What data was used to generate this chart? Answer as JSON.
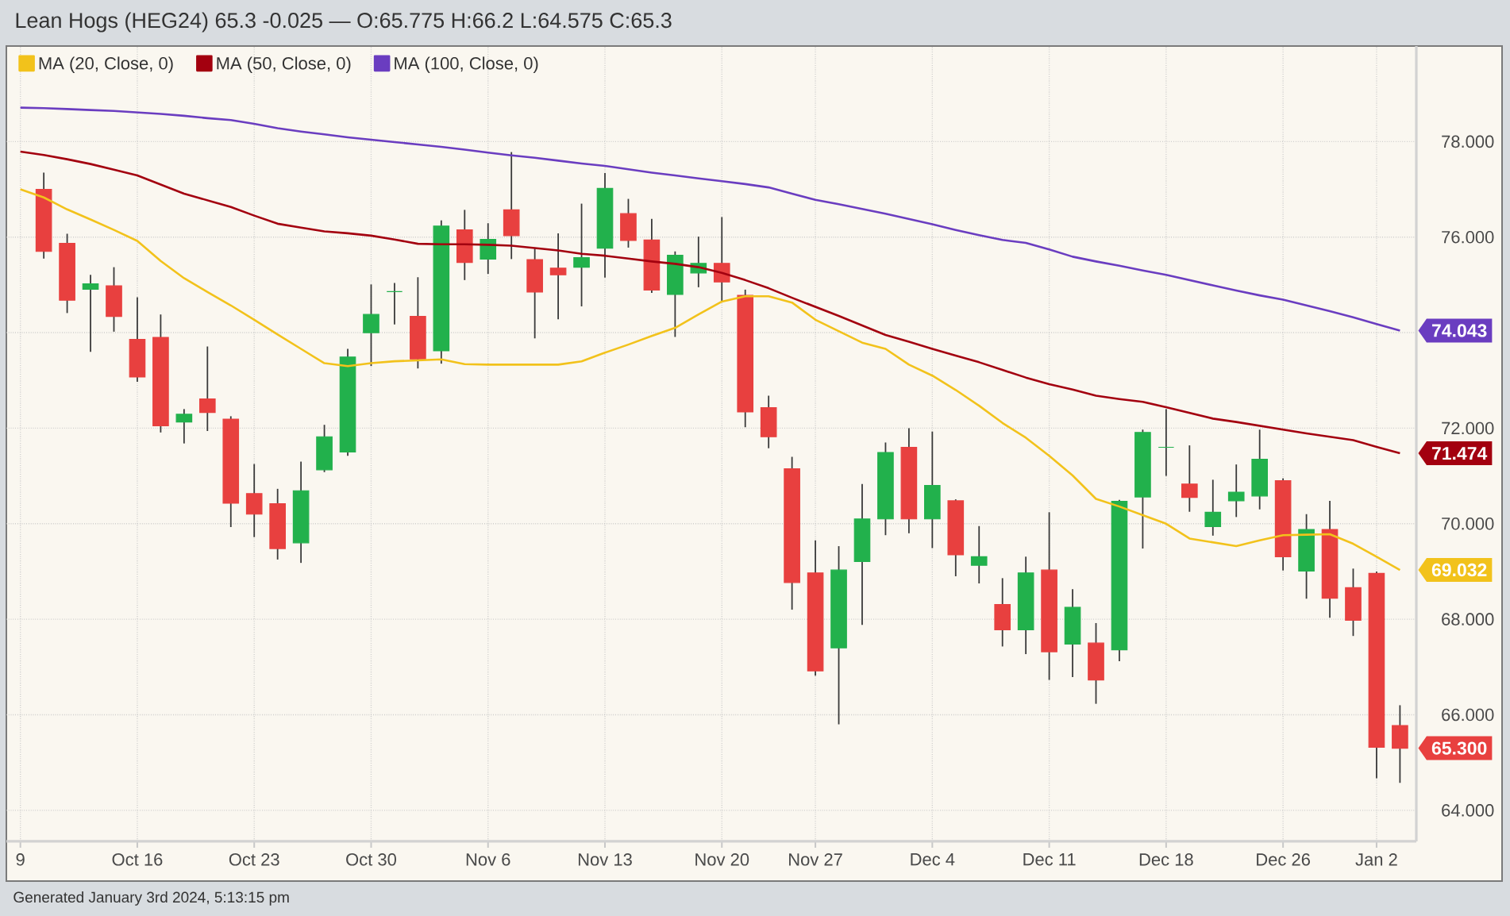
{
  "chart_data": {
    "type": "candlestick",
    "title": "Lean Hogs (HEG24) 65.3 -0.025 — O:65.775 H:66.2 L:64.575 C:65.3",
    "categories": [
      "9",
      null,
      null,
      null,
      null,
      "Oct 16",
      null,
      null,
      null,
      null,
      "Oct 23",
      null,
      null,
      null,
      null,
      "Oct 30",
      null,
      null,
      null,
      null,
      "Nov 6",
      null,
      null,
      null,
      null,
      "Nov 13",
      null,
      null,
      null,
      null,
      "Nov 20",
      null,
      null,
      null,
      "Nov 27",
      null,
      null,
      null,
      null,
      "Dec 4",
      null,
      null,
      null,
      null,
      "Dec 11",
      null,
      null,
      null,
      null,
      "Dec 18",
      null,
      null,
      null,
      null,
      "Dec 26",
      null,
      null,
      null,
      "Jan 2",
      null
    ],
    "ohlc": [
      null,
      [
        77.0,
        77.35,
        75.55,
        75.7
      ],
      [
        75.87,
        76.07,
        74.41,
        74.68
      ],
      [
        74.91,
        75.21,
        73.6,
        75.02
      ],
      [
        74.98,
        75.37,
        74.02,
        74.34
      ],
      [
        73.86,
        74.74,
        72.97,
        73.07
      ],
      [
        73.9,
        74.38,
        71.91,
        72.05
      ],
      [
        72.13,
        72.4,
        71.68,
        72.29
      ],
      [
        72.61,
        73.71,
        71.94,
        72.33
      ],
      [
        72.19,
        72.25,
        69.93,
        70.43
      ],
      [
        70.63,
        71.25,
        69.72,
        70.2
      ],
      [
        70.42,
        70.73,
        69.25,
        69.48
      ],
      [
        69.6,
        71.3,
        69.18,
        70.69
      ],
      [
        71.13,
        72.07,
        71.08,
        71.82
      ],
      [
        71.5,
        73.66,
        71.42,
        73.49
      ],
      [
        74.0,
        75.01,
        73.3,
        74.38
      ],
      [
        74.86,
        75.04,
        74.17,
        74.86
      ],
      [
        74.34,
        75.16,
        73.25,
        73.45
      ],
      [
        73.62,
        76.35,
        73.35,
        76.23
      ],
      [
        76.15,
        76.57,
        75.1,
        75.47
      ],
      [
        75.54,
        76.29,
        75.23,
        75.95
      ],
      [
        76.57,
        77.78,
        75.54,
        76.03
      ],
      [
        75.53,
        75.76,
        73.88,
        74.85
      ],
      [
        75.35,
        76.08,
        74.28,
        75.21
      ],
      [
        75.37,
        76.7,
        74.55,
        75.57
      ],
      [
        75.77,
        77.34,
        75.15,
        77.02
      ],
      [
        76.49,
        76.8,
        75.78,
        75.93
      ],
      [
        75.94,
        76.38,
        74.83,
        74.89
      ],
      [
        74.8,
        75.7,
        73.91,
        75.62
      ],
      [
        75.25,
        76.01,
        74.95,
        75.45
      ],
      [
        75.45,
        76.42,
        74.65,
        75.06
      ],
      [
        74.78,
        74.9,
        72.02,
        72.34
      ],
      [
        72.43,
        72.68,
        71.58,
        71.82
      ],
      [
        71.15,
        71.4,
        68.2,
        68.77
      ],
      [
        68.97,
        69.65,
        66.82,
        66.92
      ],
      [
        67.4,
        69.53,
        65.8,
        69.03
      ],
      [
        69.21,
        70.83,
        67.88,
        70.1
      ],
      [
        70.1,
        71.7,
        69.76,
        71.49
      ],
      [
        71.6,
        72.0,
        69.8,
        70.1
      ],
      [
        70.1,
        71.93,
        69.49,
        70.8
      ],
      [
        70.48,
        70.51,
        68.9,
        69.35
      ],
      [
        69.13,
        69.95,
        68.75,
        69.31
      ],
      [
        68.31,
        68.86,
        67.43,
        67.78
      ],
      [
        67.78,
        69.31,
        67.27,
        68.97
      ],
      [
        69.03,
        70.24,
        66.73,
        67.32
      ],
      [
        67.48,
        68.63,
        66.79,
        68.25
      ],
      [
        67.5,
        67.92,
        66.23,
        66.73
      ],
      [
        67.36,
        70.5,
        67.12,
        70.47
      ],
      [
        70.56,
        71.97,
        69.48,
        71.91
      ],
      [
        71.6,
        72.4,
        71.0,
        71.6
      ],
      [
        70.83,
        71.64,
        70.25,
        70.55
      ],
      [
        69.94,
        70.92,
        69.75,
        70.24
      ],
      [
        70.48,
        71.24,
        70.14,
        70.66
      ],
      [
        70.58,
        71.97,
        70.3,
        71.35
      ],
      [
        70.9,
        70.95,
        69.02,
        69.31
      ],
      [
        69.01,
        70.2,
        68.43,
        69.88
      ],
      [
        69.88,
        70.48,
        68.03,
        68.44
      ],
      [
        68.66,
        69.06,
        67.65,
        67.98
      ],
      [
        68.96,
        69.0,
        64.67,
        65.32
      ],
      [
        65.775,
        66.2,
        64.575,
        65.3
      ]
    ],
    "colors": [
      null,
      "#e8403f",
      "#e8403f",
      "#22b14c",
      "#e8403f",
      "#e8403f",
      "#e8403f",
      "#22b14c",
      "#e8403f",
      "#e8403f",
      "#e8403f",
      "#e8403f",
      "#22b14c",
      "#22b14c",
      "#22b14c",
      "#22b14c",
      "#22b14c",
      "#e8403f",
      "#22b14c",
      "#e8403f",
      "#22b14c",
      "#e8403f",
      "#e8403f",
      "#e8403f",
      "#22b14c",
      "#22b14c",
      "#e8403f",
      "#e8403f",
      "#22b14c",
      "#22b14c",
      "#e8403f",
      "#e8403f",
      "#e8403f",
      "#e8403f",
      "#e8403f",
      "#22b14c",
      "#22b14c",
      "#22b14c",
      "#e8403f",
      "#22b14c",
      "#e8403f",
      "#22b14c",
      "#e8403f",
      "#22b14c",
      "#e8403f",
      "#22b14c",
      "#e8403f",
      "#22b14c",
      "#22b14c",
      "#22b14c",
      "#e8403f",
      "#22b14c",
      "#22b14c",
      "#22b14c",
      "#e8403f",
      "#22b14c",
      "#e8403f",
      "#e8403f",
      "#e8403f",
      "#e8403f"
    ],
    "series": [
      {
        "name": "MA (20, Close, 0)",
        "type": "line",
        "color": "#f2c21b",
        "values": [
          77.0,
          76.83,
          76.58,
          76.37,
          76.15,
          75.92,
          75.5,
          75.14,
          74.85,
          74.57,
          74.27,
          73.96,
          73.66,
          73.36,
          73.3,
          73.36,
          73.4,
          73.42,
          73.44,
          73.34,
          73.33,
          73.33,
          73.33,
          73.33,
          73.4,
          73.58,
          73.75,
          73.93,
          74.1,
          74.38,
          74.65,
          74.76,
          74.76,
          74.63,
          74.27,
          74.03,
          73.79,
          73.66,
          73.33,
          73.1,
          72.8,
          72.47,
          72.11,
          71.8,
          71.42,
          71.01,
          70.52,
          70.36,
          70.18,
          70.0,
          69.69,
          69.61,
          69.53,
          69.65,
          69.76,
          69.77,
          69.78,
          69.58,
          69.31,
          69.032
        ],
        "value_labels": [
          null,
          null,
          null,
          null,
          null,
          null,
          null,
          null,
          null,
          null,
          null,
          null,
          null,
          null,
          null,
          null,
          null,
          null,
          null,
          null,
          null,
          null,
          null,
          null,
          null,
          null,
          null,
          null,
          null,
          null,
          null,
          null,
          null,
          null,
          null,
          null,
          null,
          null,
          null,
          null,
          null,
          null,
          null,
          null,
          null,
          null,
          null,
          null,
          null,
          null,
          null,
          null,
          null,
          null,
          null,
          null,
          null,
          null,
          null,
          "69.032"
        ]
      },
      {
        "name": "MA (50, Close, 0)",
        "type": "line",
        "color": "#a3000f",
        "values": [
          77.79,
          77.72,
          77.63,
          77.53,
          77.41,
          77.29,
          77.1,
          76.91,
          76.77,
          76.63,
          76.45,
          76.28,
          76.2,
          76.12,
          76.08,
          76.03,
          75.95,
          75.86,
          75.85,
          75.85,
          75.84,
          75.82,
          75.77,
          75.72,
          75.65,
          75.61,
          75.55,
          75.49,
          75.44,
          75.37,
          75.25,
          75.1,
          74.93,
          74.73,
          74.54,
          74.35,
          74.15,
          73.95,
          73.81,
          73.66,
          73.52,
          73.38,
          73.22,
          73.06,
          72.92,
          72.81,
          72.68,
          72.61,
          72.55,
          72.44,
          72.32,
          72.2,
          72.13,
          72.05,
          71.97,
          71.89,
          71.82,
          71.75,
          71.61,
          71.474
        ],
        "value_labels": [
          null,
          null,
          null,
          null,
          null,
          null,
          null,
          null,
          null,
          null,
          null,
          null,
          null,
          null,
          null,
          null,
          null,
          null,
          null,
          null,
          null,
          null,
          null,
          null,
          null,
          null,
          null,
          null,
          null,
          null,
          null,
          null,
          null,
          null,
          null,
          null,
          null,
          null,
          null,
          null,
          null,
          null,
          null,
          null,
          null,
          null,
          null,
          null,
          null,
          null,
          null,
          null,
          null,
          null,
          null,
          null,
          null,
          null,
          null,
          "71.474"
        ]
      },
      {
        "name": "MA (100, Close, 0)",
        "type": "line",
        "color": "#6a3dc0",
        "values": [
          78.71,
          78.7,
          78.68,
          78.66,
          78.64,
          78.61,
          78.58,
          78.54,
          78.49,
          78.45,
          78.37,
          78.28,
          78.21,
          78.15,
          78.09,
          78.04,
          77.99,
          77.94,
          77.89,
          77.83,
          77.77,
          77.71,
          77.66,
          77.6,
          77.54,
          77.49,
          77.42,
          77.35,
          77.29,
          77.23,
          77.17,
          77.11,
          77.04,
          76.91,
          76.78,
          76.69,
          76.59,
          76.49,
          76.38,
          76.27,
          76.15,
          76.04,
          75.94,
          75.88,
          75.74,
          75.59,
          75.49,
          75.4,
          75.3,
          75.21,
          75.1,
          74.99,
          74.88,
          74.78,
          74.69,
          74.57,
          74.45,
          74.32,
          74.18,
          74.043
        ],
        "value_labels": [
          null,
          null,
          null,
          null,
          null,
          null,
          null,
          null,
          null,
          null,
          null,
          null,
          null,
          null,
          null,
          null,
          null,
          null,
          null,
          null,
          null,
          null,
          null,
          null,
          null,
          null,
          null,
          null,
          null,
          null,
          null,
          null,
          null,
          null,
          null,
          null,
          null,
          null,
          null,
          null,
          null,
          null,
          null,
          null,
          null,
          null,
          null,
          null,
          null,
          null,
          null,
          null,
          null,
          null,
          null,
          null,
          null,
          null,
          null,
          "74.043"
        ]
      }
    ],
    "ylim": [
      63.35,
      80.0
    ],
    "yticks": [
      {
        "value": 64,
        "label": "64.000"
      },
      {
        "value": 66,
        "label": "66.000"
      },
      {
        "value": 68,
        "label": "68.000"
      },
      {
        "value": 70,
        "label": "70.000"
      },
      {
        "value": 72,
        "label": "72.000"
      },
      {
        "value": 74,
        "label": null
      },
      {
        "value": 76,
        "label": "76.000"
      },
      {
        "value": 78,
        "label": "78.000"
      }
    ],
    "grid": true,
    "legend": "top left",
    "annotations": [
      "65.300",
      "Generated January 3rd 2024, 5:13:15 pm"
    ]
  }
}
